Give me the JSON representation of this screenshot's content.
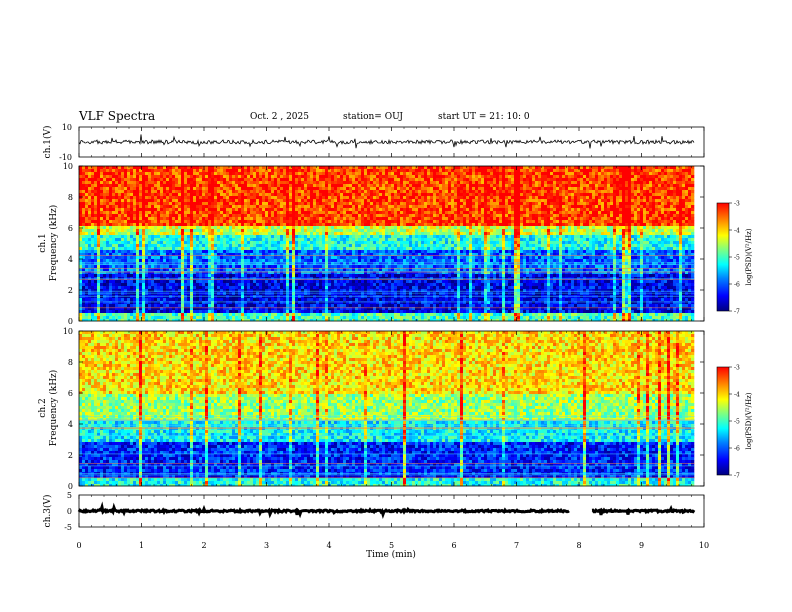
{
  "header": {
    "title": "VLF Spectra",
    "date": "Oct. 2 , 2025",
    "station": "station= OUJ",
    "start": "start  UT =   21: 10: 0"
  },
  "colors": {
    "colormap": [
      "#00007f",
      "#0000ff",
      "#0080ff",
      "#00ffff",
      "#80ff80",
      "#ffff00",
      "#ff8000",
      "#ff0000"
    ],
    "trace": "#000000"
  },
  "chart_data": [
    {
      "id": "ch1-waveform",
      "type": "line",
      "ylabel": "ch.1(V)",
      "ylim": [
        -10,
        10
      ],
      "yticks": [
        "10",
        "-10"
      ],
      "xlim": [
        0,
        10
      ],
      "baseline": 0,
      "amplitude": 2.5
    },
    {
      "id": "ch1-spectrogram",
      "type": "heatmap",
      "ylabel": "ch.1\nFrequency (kHz)",
      "ylim": [
        0,
        10
      ],
      "yticks": [
        "0",
        "2",
        "4",
        "6",
        "8",
        "10"
      ],
      "xlim": [
        0,
        10
      ],
      "data_end_min": 9.85,
      "colorbar": {
        "label": "log(PSD)(V²/Hz)",
        "range": [
          -7,
          -3
        ],
        "ticks": [
          "-3",
          "-4",
          "-5",
          "-6",
          "-7"
        ]
      },
      "bands_khz": [
        {
          "from": 0,
          "to": 0.5,
          "level": -5.0
        },
        {
          "from": 0.5,
          "to": 3,
          "level": -6.5
        },
        {
          "from": 3,
          "to": 4.5,
          "level": -6.0
        },
        {
          "from": 4.5,
          "to": 5.5,
          "level": -5.2
        },
        {
          "from": 5.5,
          "to": 6.2,
          "level": -4.4
        },
        {
          "from": 6.2,
          "to": 10,
          "level": -3.3
        }
      ]
    },
    {
      "id": "ch2-spectrogram",
      "type": "heatmap",
      "ylabel": "ch.2\nFrequency (kHz)",
      "ylim": [
        0,
        10
      ],
      "yticks": [
        "0",
        "2",
        "4",
        "6",
        "8",
        "10"
      ],
      "xlim": [
        0,
        10
      ],
      "data_end_min": 9.85,
      "colorbar": {
        "label": "log(PSD)(V²/Hz)",
        "range": [
          -7,
          -3
        ],
        "ticks": [
          "-3",
          "-4",
          "-5",
          "-6",
          "-7"
        ]
      },
      "bands_khz": [
        {
          "from": 0,
          "to": 0.6,
          "level": -5.2
        },
        {
          "from": 0.6,
          "to": 2.8,
          "level": -6.3
        },
        {
          "from": 2.8,
          "to": 4.2,
          "level": -5.3
        },
        {
          "from": 4.2,
          "to": 6,
          "level": -4.6
        },
        {
          "from": 6,
          "to": 10,
          "level": -4.0
        }
      ]
    },
    {
      "id": "ch3-waveform",
      "type": "line",
      "ylabel": "ch.3(V)",
      "ylim": [
        -5,
        5
      ],
      "yticks": [
        "5",
        "0",
        "-5"
      ],
      "xlim": [
        0,
        10
      ],
      "xlabel": "Time (min)",
      "xticks": [
        "0",
        "1",
        "2",
        "3",
        "4",
        "5",
        "6",
        "7",
        "8",
        "9",
        "10"
      ],
      "baseline": 0,
      "amplitude": 0.6,
      "gap_min": [
        7.85,
        8.2
      ]
    }
  ]
}
